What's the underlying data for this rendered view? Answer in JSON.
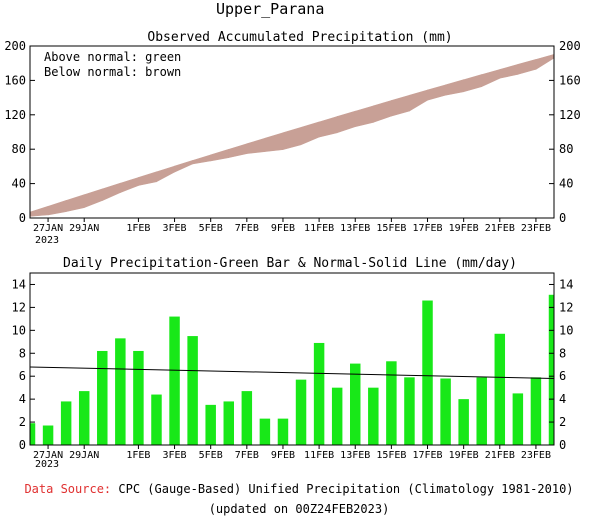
{
  "page_title": "Upper_Parana",
  "footer": {
    "source_label": "Data Source:",
    "source_text": " CPC (Gauge-Based) Unified Precipitation (Climatology 1981-2010)",
    "updated": "(updated on 00Z24FEB2023)"
  },
  "colors": {
    "above_normal": "#00c000",
    "below_normal": "#c8a096",
    "bar": "#18e818",
    "normal_line": "#000000",
    "source_label": "#e03030"
  },
  "chart_data": [
    {
      "type": "area",
      "title": "Observed Accumulated Precipitation (mm)",
      "annotations": [
        "Above normal: green",
        "Below normal: brown"
      ],
      "x_tick_labels": [
        "27JAN",
        "29JAN",
        "1FEB",
        "3FEB",
        "5FEB",
        "7FEB",
        "9FEB",
        "11FEB",
        "13FEB",
        "15FEB",
        "17FEB",
        "19FEB",
        "21FEB",
        "23FEB"
      ],
      "x_tick_day_index": [
        1,
        3,
        6,
        8,
        10,
        12,
        14,
        16,
        18,
        20,
        22,
        24,
        26,
        28
      ],
      "year_label": "2023",
      "ylim": [
        0,
        200
      ],
      "yticks": [
        0,
        40,
        80,
        120,
        160,
        200
      ],
      "observed": [
        1.9,
        3.6,
        7.4,
        12.1,
        20.3,
        29.6,
        37.8,
        42.2,
        53.4,
        62.9,
        66.4,
        70.2,
        74.9,
        77.2,
        79.5,
        85.2,
        94.1,
        99.1,
        106.2,
        111.2,
        118.5,
        124.4,
        137.0,
        142.8,
        146.8,
        152.8,
        162.5,
        167.0,
        172.9,
        186.0
      ],
      "normal": [
        6.8,
        13.6,
        20.4,
        27.1,
        33.8,
        40.5,
        47.1,
        53.7,
        60.3,
        66.9,
        73.4,
        79.9,
        86.3,
        92.7,
        99.1,
        105.4,
        111.7,
        118.0,
        124.2,
        130.4,
        136.6,
        142.7,
        148.8,
        154.8,
        160.8,
        166.8,
        172.7,
        178.6,
        184.4,
        190.2
      ]
    },
    {
      "type": "bar",
      "title": "Daily Precipitation-Green Bar & Normal-Solid Line (mm/day)",
      "x_tick_labels": [
        "27JAN",
        "29JAN",
        "1FEB",
        "3FEB",
        "5FEB",
        "7FEB",
        "9FEB",
        "11FEB",
        "13FEB",
        "15FEB",
        "17FEB",
        "19FEB",
        "21FEB",
        "23FEB"
      ],
      "x_tick_day_index": [
        1,
        3,
        6,
        8,
        10,
        12,
        14,
        16,
        18,
        20,
        22,
        24,
        26,
        28
      ],
      "year_label": "2023",
      "ylim": [
        0,
        15
      ],
      "yticks": [
        0,
        2,
        4,
        6,
        8,
        10,
        12,
        14
      ],
      "values": [
        1.9,
        1.7,
        3.8,
        4.7,
        8.2,
        9.3,
        8.2,
        4.4,
        11.2,
        9.5,
        3.5,
        3.8,
        4.7,
        2.3,
        2.3,
        5.7,
        8.9,
        5.0,
        7.1,
        5.0,
        7.3,
        5.9,
        12.6,
        5.8,
        4.0,
        5.9,
        9.7,
        4.5,
        5.9,
        13.1
      ],
      "normal_start": 6.8,
      "normal_end": 5.8
    }
  ]
}
